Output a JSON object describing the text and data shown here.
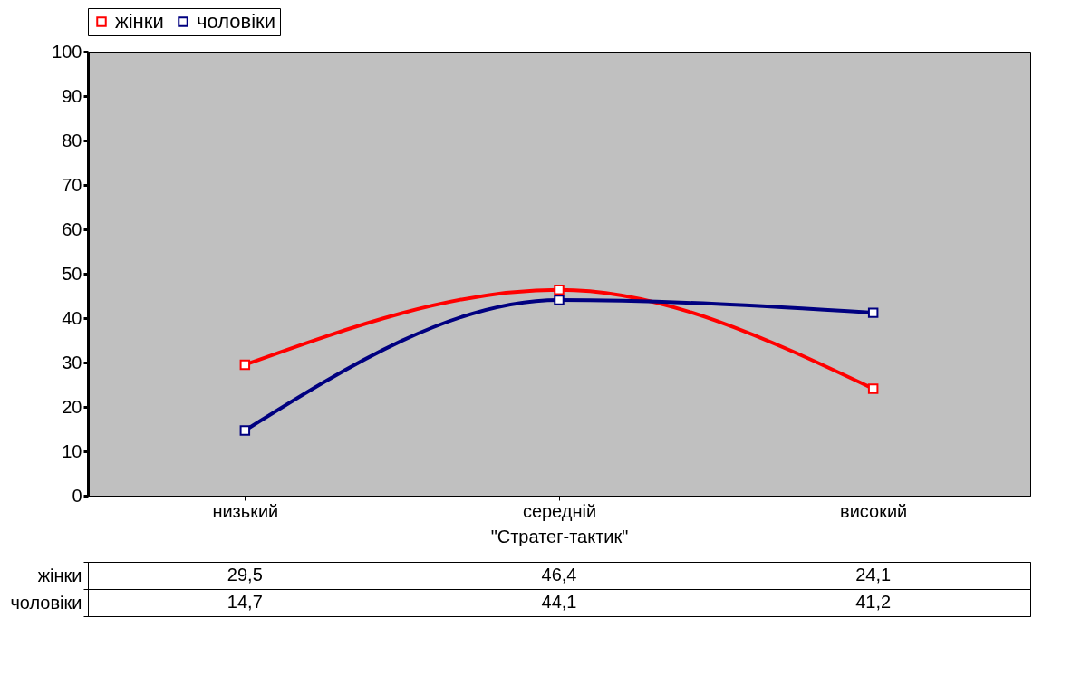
{
  "chart_data": {
    "type": "line",
    "xlabel": "\"Стратег-тактик\"",
    "categories": [
      "низький",
      "середній",
      "високий"
    ],
    "series": [
      {
        "name": "жінки",
        "color": "#ff0000",
        "values": [
          29.5,
          46.4,
          24.1
        ],
        "value_labels": [
          "29,5",
          "46,4",
          "24,1"
        ]
      },
      {
        "name": "чоловіки",
        "color": "#000080",
        "values": [
          14.7,
          44.1,
          41.2
        ],
        "value_labels": [
          "14,7",
          "44,1",
          "41,2"
        ]
      }
    ],
    "ylim": [
      0,
      100
    ],
    "yticks": [
      0,
      10,
      20,
      30,
      40,
      50,
      60,
      70,
      80,
      90,
      100
    ],
    "grid": false,
    "legend": "top",
    "marker": "square",
    "line_style": "solid"
  }
}
